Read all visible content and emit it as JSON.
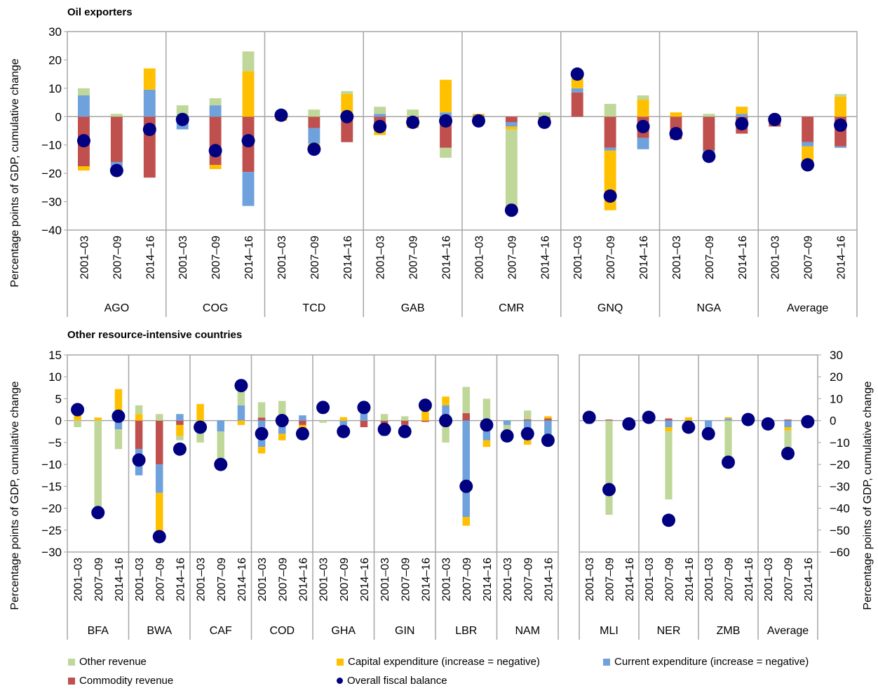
{
  "colors": {
    "other_revenue": "#bfd89a",
    "capital_expenditure": "#ffc000",
    "current_expenditure": "#6fa1dc",
    "commodity_revenue": "#c0504d",
    "overall_fiscal_balance": "#000080"
  },
  "legend": [
    {
      "key": "other_revenue",
      "label": "Other revenue",
      "kind": "square"
    },
    {
      "key": "capital_expenditure",
      "label": "Capital expenditure (increase = negative)",
      "kind": "square"
    },
    {
      "key": "current_expenditure",
      "label": "Current expenditure (increase = negative)",
      "kind": "square"
    },
    {
      "key": "commodity_revenue",
      "label": "Commodity revenue",
      "kind": "square"
    },
    {
      "key": "overall_fiscal_balance",
      "label": "Overall fiscal balance",
      "kind": "dot"
    }
  ],
  "chart_data": [
    {
      "type": "bar",
      "stacked": true,
      "title": "Oil exporters",
      "ylabel": "Percentage points of GDP, cumulative change",
      "ylim": [
        -40,
        30
      ],
      "yticks": [
        30,
        20,
        10,
        0,
        -10,
        -20,
        -30,
        -40
      ],
      "periods": [
        "2001–03",
        "2007–09",
        "2014–16"
      ],
      "groups": [
        {
          "label": "AGO",
          "bars": [
            {
              "other": 2.5,
              "capital": -1.5,
              "current": 7.5,
              "commodity": -17.5,
              "balance": -8.5
            },
            {
              "other": 1,
              "capital": 0,
              "current": -1.5,
              "commodity": -16,
              "balance": -19
            },
            {
              "other": 0,
              "capital": 7.5,
              "current": 9.5,
              "commodity": -21.5,
              "balance": -4.5
            }
          ]
        },
        {
          "label": "COG",
          "bars": [
            {
              "other": 4,
              "capital": 0,
              "current": -4.5,
              "commodity": 0,
              "balance": -1
            },
            {
              "other": 2.5,
              "capital": -1.5,
              "current": 4,
              "commodity": -17,
              "balance": -12
            },
            {
              "other": 7,
              "capital": 16,
              "current": -12,
              "commodity": -19.5,
              "balance": -8.5
            }
          ]
        },
        {
          "label": "TCD",
          "bars": [
            {
              "other": 0,
              "capital": -1.5,
              "current": 0,
              "commodity": 0.5,
              "balance": 0.5
            },
            {
              "other": 2.5,
              "capital": -1.5,
              "current": -5.5,
              "commodity": -4,
              "balance": -11.5
            },
            {
              "other": 1,
              "capital": 8,
              "current": 0,
              "commodity": -9,
              "balance": 0
            }
          ]
        },
        {
          "label": "GAB",
          "bars": [
            {
              "other": 2.5,
              "capital": -1.5,
              "current": 1,
              "commodity": -5,
              "balance": -3.5
            },
            {
              "other": 2.5,
              "capital": -1,
              "current": 0,
              "commodity": -3,
              "balance": -2
            },
            {
              "other": -3.5,
              "capital": 11.5,
              "current": 1.5,
              "commodity": -11,
              "balance": -1.5
            }
          ]
        },
        {
          "label": "CMR",
          "bars": [
            {
              "other": 0,
              "capital": 0.5,
              "current": 0.5,
              "commodity": -1,
              "balance": -1.5
            },
            {
              "other": -28,
              "capital": -1,
              "current": -1.5,
              "commodity": -2,
              "balance": -33
            },
            {
              "other": 1.5,
              "capital": 0,
              "current": 0,
              "commodity": -1.5,
              "balance": -2
            }
          ]
        },
        {
          "label": "GNQ",
          "bars": [
            {
              "other": 0,
              "capital": 3.5,
              "current": 1.5,
              "commodity": 8.5,
              "balance": 15
            },
            {
              "other": 4.5,
              "capital": -21,
              "current": -1,
              "commodity": -11,
              "balance": -28
            },
            {
              "other": 1.5,
              "capital": 6,
              "current": -4,
              "commodity": -7.5,
              "balance": -3.5
            }
          ]
        },
        {
          "label": "NGA",
          "bars": [
            {
              "other": 0,
              "capital": 1.5,
              "current": 0,
              "commodity": -8,
              "balance": -6
            },
            {
              "other": 1,
              "capital": 0,
              "current": -1.5,
              "commodity": -12,
              "balance": -14
            },
            {
              "other": 0,
              "capital": 2.5,
              "current": 1,
              "commodity": -6,
              "balance": -2.5
            }
          ]
        },
        {
          "label": "Average",
          "bars": [
            {
              "other": 0.5,
              "capital": 0,
              "current": 0,
              "commodity": -3.5,
              "balance": -1
            },
            {
              "other": -0.5,
              "capital": -5.5,
              "current": -1.5,
              "commodity": -9,
              "balance": -17
            },
            {
              "other": 1,
              "capital": 7,
              "current": -0.5,
              "commodity": -10.5,
              "balance": -3
            }
          ]
        }
      ]
    },
    {
      "type": "bar",
      "stacked": true,
      "title": "Other resource-intensive countries",
      "ylabel": "Percentage points of GDP, cumulative change",
      "ylim": [
        -30,
        15
      ],
      "yticks": [
        15,
        10,
        5,
        0,
        -5,
        -10,
        -15,
        -20,
        -25,
        -30
      ],
      "periods": [
        "2001–03",
        "2007–09",
        "2014–16"
      ],
      "groups": [
        {
          "label": "BFA",
          "bars": [
            {
              "other": -1.5,
              "capital": 2.5,
              "current": 0,
              "commodity": 0,
              "balance": 2.5
            },
            {
              "other": -20.5,
              "capital": 0.7,
              "current": 0,
              "commodity": 0,
              "balance": -21
            },
            {
              "other": -4.5,
              "capital": 7.2,
              "current": -2,
              "commodity": 0,
              "balance": 1
            }
          ]
        },
        {
          "label": "BWA",
          "bars": [
            {
              "other": 2,
              "capital": 1.5,
              "current": -6,
              "commodity": -6.5,
              "balance": -9
            },
            {
              "other": 1.5,
              "capital": -11,
              "current": -6.5,
              "commodity": -10,
              "balance": -26.5
            },
            {
              "other": -1,
              "capital": -2.5,
              "current": 1.5,
              "commodity": -1,
              "balance": -6.5
            }
          ]
        },
        {
          "label": "CAF",
          "bars": [
            {
              "other": -5,
              "capital": 3.8,
              "current": 0,
              "commodity": 0,
              "balance": -1.5
            },
            {
              "other": -6.5,
              "capital": 0,
              "current": -2.5,
              "commodity": 0,
              "balance": -10
            },
            {
              "other": 4.5,
              "capital": -1,
              "current": 3.5,
              "commodity": 0,
              "balance": 8
            }
          ]
        },
        {
          "label": "COD",
          "bars": [
            {
              "other": 3.5,
              "capital": -1.5,
              "current": -6,
              "commodity": 0.7,
              "balance": -3
            },
            {
              "other": 4.5,
              "capital": -1.5,
              "current": -3,
              "commodity": 0,
              "balance": 0
            },
            {
              "other": 0,
              "capital": -1.5,
              "current": 1.2,
              "commodity": -1,
              "balance": -3
            }
          ]
        },
        {
          "label": "GHA",
          "bars": [
            {
              "other": -0.5,
              "capital": 0,
              "current": 0,
              "commodity": 0,
              "balance": 3
            },
            {
              "other": 0,
              "capital": 0.8,
              "current": -1.5,
              "commodity": 0,
              "balance": -2.5
            },
            {
              "other": 0.7,
              "capital": 0,
              "current": 3.5,
              "commodity": -1.5,
              "balance": 3
            }
          ]
        },
        {
          "label": "GIN",
          "bars": [
            {
              "other": 1.5,
              "capital": 0,
              "current": -2,
              "commodity": -1.5,
              "balance": -2
            },
            {
              "other": 1,
              "capital": 0,
              "current": -1.5,
              "commodity": -1,
              "balance": -2.5
            },
            {
              "other": 0,
              "capital": 2.5,
              "current": 0,
              "commodity": -0.3,
              "balance": 3.5
            }
          ]
        },
        {
          "label": "LBR",
          "bars": [
            {
              "other": -5,
              "capital": 2,
              "current": 3.5,
              "commodity": 0,
              "balance": 0
            },
            {
              "other": 6,
              "capital": -2,
              "current": -22,
              "commodity": 1.7,
              "balance": -15
            },
            {
              "other": 5,
              "capital": -1.5,
              "current": -2.5,
              "commodity": -2,
              "balance": -1
            }
          ]
        },
        {
          "label": "NAM",
          "bars": [
            {
              "other": -1.5,
              "capital": 0,
              "current": -1,
              "commodity": 0,
              "balance": -3.5
            },
            {
              "other": 2,
              "capital": -1,
              "current": -4.5,
              "commodity": 0.3,
              "balance": -3
            },
            {
              "other": 0,
              "capital": 0.5,
              "current": -4,
              "commodity": 0.5,
              "balance": -4.5
            }
          ]
        }
      ]
    },
    {
      "type": "bar",
      "stacked": true,
      "title": "",
      "ylabel": "Percentage points of GDP, cumulative change",
      "ylim": [
        -60,
        30
      ],
      "yticks": [
        30,
        20,
        10,
        0,
        -10,
        -20,
        -30,
        -40,
        -50,
        -60
      ],
      "periods": [
        "2001–03",
        "2007–09",
        "2014–16"
      ],
      "groups": [
        {
          "label": "MLI",
          "bars": [
            {
              "other": 0,
              "capital": 0,
              "current": -1.5,
              "commodity": 0,
              "balance": 1.5
            },
            {
              "other": -43,
              "capital": 0,
              "current": 0,
              "commodity": 0.5,
              "balance": -31.5
            },
            {
              "other": 0,
              "capital": 0,
              "current": 0,
              "commodity": 0,
              "balance": -1.5
            }
          ]
        },
        {
          "label": "NER",
          "bars": [
            {
              "other": 2,
              "capital": 0,
              "current": 0,
              "commodity": 0,
              "balance": 1.5
            },
            {
              "other": -31,
              "capital": -2,
              "current": -3,
              "commodity": 1,
              "balance": -45.5
            },
            {
              "other": 0,
              "capital": 1.5,
              "current": -1,
              "commodity": -1,
              "balance": -3
            }
          ]
        },
        {
          "label": "ZMB",
          "bars": [
            {
              "other": 0,
              "capital": 0,
              "current": -4.5,
              "commodity": 0,
              "balance": -6
            },
            {
              "other": -18,
              "capital": 0.6,
              "current": 1,
              "commodity": 0,
              "balance": -19
            },
            {
              "other": 0,
              "capital": 0,
              "current": -1.5,
              "commodity": 0,
              "balance": 0.5
            }
          ]
        },
        {
          "label": "Average",
          "bars": [
            {
              "other": 0,
              "capital": 0,
              "current": 0,
              "commodity": 0,
              "balance": -1.5
            },
            {
              "other": -9,
              "capital": -1.5,
              "current": -3,
              "commodity": 0.5,
              "balance": -15
            },
            {
              "other": 0,
              "capital": 0,
              "current": 0,
              "commodity": 0,
              "balance": -0.5
            }
          ]
        }
      ]
    }
  ]
}
